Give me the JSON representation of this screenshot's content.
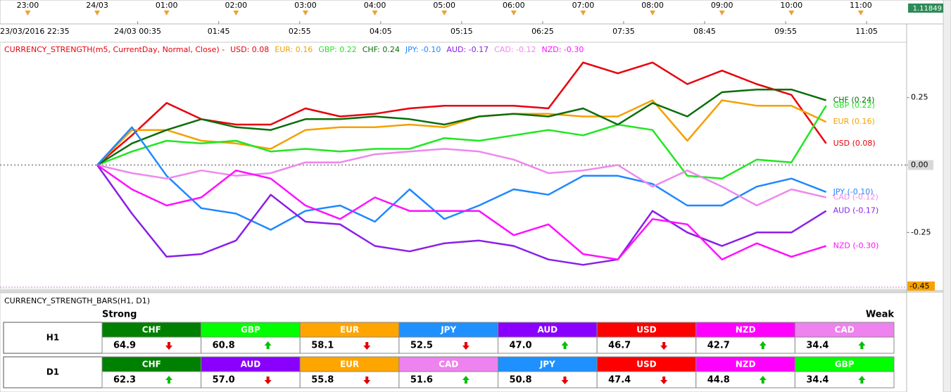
{
  "chart_data": {
    "type": "line",
    "title": "CURRENCY_STRENGTH(m5, CurrentDay, Normal, Close) -",
    "x": [
      0,
      0.5,
      1,
      1.5,
      2,
      2.5,
      3,
      3.5,
      4,
      4.5,
      5,
      5.5,
      6,
      6.5,
      7,
      7.5,
      8,
      8.5,
      9,
      9.5,
      10,
      10.5
    ],
    "xlim": [
      -1.4,
      11.66
    ],
    "xticks": [
      {
        "value": -1,
        "label": "23:00"
      },
      {
        "value": 0,
        "label": "24/03"
      },
      {
        "value": 1,
        "label": "01:00"
      },
      {
        "value": 2,
        "label": "02:00"
      },
      {
        "value": 3,
        "label": "03:00"
      },
      {
        "value": 4,
        "label": "04:00"
      },
      {
        "value": 5,
        "label": "05:00"
      },
      {
        "value": 6,
        "label": "06:00"
      },
      {
        "value": 7,
        "label": "07:00"
      },
      {
        "value": 8,
        "label": "08:00"
      },
      {
        "value": 9,
        "label": "09:00"
      },
      {
        "value": 10,
        "label": "10:00"
      },
      {
        "value": 11,
        "label": "11:00"
      }
    ],
    "xticks_detail": [
      {
        "value": -1.417,
        "label": "23/03/2016 22:35"
      },
      {
        "value": 0.583,
        "label": "24/03 00:35"
      },
      {
        "value": 1.75,
        "label": "01:45"
      },
      {
        "value": 2.917,
        "label": "02:55"
      },
      {
        "value": 4.083,
        "label": "04:05"
      },
      {
        "value": 5.25,
        "label": "05:15"
      },
      {
        "value": 6.417,
        "label": "06:25"
      },
      {
        "value": 7.583,
        "label": "07:35"
      },
      {
        "value": 8.75,
        "label": "08:45"
      },
      {
        "value": 9.917,
        "label": "09:55"
      },
      {
        "value": 11.083,
        "label": "11:05"
      }
    ],
    "ylim": [
      -0.45,
      0.45
    ],
    "yticks": [
      0.25,
      {
        "value": 0,
        "label": "0.00"
      },
      -0.25
    ],
    "ymin_label": {
      "value": -0.45,
      "label": "-0.45"
    },
    "zero_line": true,
    "price_label": "1.11849",
    "series": [
      {
        "name": "USD",
        "color": "#e8000b",
        "legend_label": "USD: 0.08",
        "end_label": "USD (0.08)",
        "values": [
          0,
          0.11,
          0.23,
          0.17,
          0.15,
          0.15,
          0.21,
          0.18,
          0.19,
          0.21,
          0.22,
          0.22,
          0.22,
          0.21,
          0.38,
          0.34,
          0.38,
          0.3,
          0.35,
          0.3,
          0.26,
          0.08
        ]
      },
      {
        "name": "EUR",
        "color": "#f5a000",
        "legend_label": "EUR: 0.16",
        "end_label": "EUR (0.16)",
        "values": [
          0,
          0.13,
          0.13,
          0.09,
          0.08,
          0.06,
          0.13,
          0.14,
          0.14,
          0.15,
          0.14,
          0.18,
          0.19,
          0.19,
          0.18,
          0.18,
          0.24,
          0.09,
          0.24,
          0.22,
          0.22,
          0.16
        ]
      },
      {
        "name": "GBP",
        "color": "#22e622",
        "legend_label": "GBP: 0.22",
        "end_label": "GBP (0.22)",
        "values": [
          0,
          0.05,
          0.09,
          0.08,
          0.09,
          0.05,
          0.06,
          0.05,
          0.06,
          0.06,
          0.1,
          0.09,
          0.11,
          0.13,
          0.11,
          0.15,
          0.13,
          -0.04,
          -0.05,
          0.02,
          0.01,
          0.22
        ]
      },
      {
        "name": "CHF",
        "color": "#0a6e0a",
        "legend_label": "CHF: 0.24",
        "end_label": "CHF (0.24)",
        "values": [
          0,
          0.08,
          0.13,
          0.17,
          0.14,
          0.13,
          0.17,
          0.17,
          0.18,
          0.17,
          0.15,
          0.18,
          0.19,
          0.18,
          0.21,
          0.15,
          0.23,
          0.18,
          0.27,
          0.28,
          0.28,
          0.24
        ]
      },
      {
        "name": "JPY",
        "color": "#1e88ff",
        "legend_label": "JPY: -0.10",
        "end_label": "JPY (-0.10)",
        "values": [
          0,
          0.14,
          -0.04,
          -0.16,
          -0.18,
          -0.24,
          -0.17,
          -0.15,
          -0.21,
          -0.09,
          -0.2,
          -0.15,
          -0.09,
          -0.11,
          -0.04,
          -0.04,
          -0.07,
          -0.15,
          -0.15,
          -0.08,
          -0.05,
          -0.1
        ]
      },
      {
        "name": "AUD",
        "color": "#8a1ee8",
        "legend_label": "AUD: -0.17",
        "end_label": "AUD (-0.17)",
        "values": [
          0,
          -0.18,
          -0.34,
          -0.33,
          -0.28,
          -0.11,
          -0.21,
          -0.22,
          -0.3,
          -0.32,
          -0.29,
          -0.28,
          -0.3,
          -0.35,
          -0.37,
          -0.35,
          -0.17,
          -0.25,
          -0.3,
          -0.25,
          -0.25,
          -0.17
        ]
      },
      {
        "name": "CAD",
        "color": "#ee88ee",
        "legend_label": "CAD: -0.12",
        "end_label": "CAD (-0.12)",
        "values": [
          0,
          -0.03,
          -0.05,
          -0.02,
          -0.04,
          -0.03,
          0.01,
          0.01,
          0.04,
          0.05,
          0.06,
          0.05,
          0.02,
          -0.03,
          -0.02,
          0.0,
          -0.08,
          -0.02,
          -0.08,
          -0.15,
          -0.09,
          -0.12
        ]
      },
      {
        "name": "NZD",
        "color": "#ff10ff",
        "legend_label": "NZD: -0.30",
        "end_label": "NZD (-0.30)",
        "values": [
          0,
          -0.09,
          -0.15,
          -0.12,
          -0.02,
          -0.05,
          -0.15,
          -0.2,
          -0.12,
          -0.17,
          -0.17,
          -0.17,
          -0.26,
          -0.22,
          -0.33,
          -0.35,
          -0.2,
          -0.22,
          -0.35,
          -0.29,
          -0.34,
          -0.3
        ]
      }
    ]
  },
  "bars_panel": {
    "title": "CURRENCY_STRENGTH_BARS(H1, D1)",
    "strong_label": "Strong",
    "weak_label": "Weak",
    "rows": [
      {
        "label": "H1",
        "cells": [
          {
            "currency": "CHF",
            "color": "#008000",
            "value": "64.9",
            "trend": "down"
          },
          {
            "currency": "GBP",
            "color": "#00ff00",
            "value": "60.8",
            "trend": "up"
          },
          {
            "currency": "EUR",
            "color": "#ffa500",
            "value": "58.1",
            "trend": "down"
          },
          {
            "currency": "JPY",
            "color": "#1e90ff",
            "value": "52.5",
            "trend": "down"
          },
          {
            "currency": "AUD",
            "color": "#8a00ff",
            "value": "47.0",
            "trend": "up"
          },
          {
            "currency": "USD",
            "color": "#ff0000",
            "value": "46.7",
            "trend": "down"
          },
          {
            "currency": "NZD",
            "color": "#ff00ff",
            "value": "42.7",
            "trend": "up"
          },
          {
            "currency": "CAD",
            "color": "#ee82ee",
            "value": "34.4",
            "trend": "up"
          }
        ]
      },
      {
        "label": "D1",
        "cells": [
          {
            "currency": "CHF",
            "color": "#008000",
            "value": "62.3",
            "trend": "up"
          },
          {
            "currency": "AUD",
            "color": "#8a00ff",
            "value": "57.0",
            "trend": "down"
          },
          {
            "currency": "EUR",
            "color": "#ffa500",
            "value": "55.8",
            "trend": "down"
          },
          {
            "currency": "CAD",
            "color": "#ee82ee",
            "value": "51.6",
            "trend": "up"
          },
          {
            "currency": "JPY",
            "color": "#1e90ff",
            "value": "50.8",
            "trend": "down"
          },
          {
            "currency": "USD",
            "color": "#ff0000",
            "value": "47.4",
            "trend": "down"
          },
          {
            "currency": "NZD",
            "color": "#ff00ff",
            "value": "44.8",
            "trend": "up"
          },
          {
            "currency": "GBP",
            "color": "#00ff00",
            "value": "34.4",
            "trend": "up"
          }
        ]
      }
    ]
  }
}
